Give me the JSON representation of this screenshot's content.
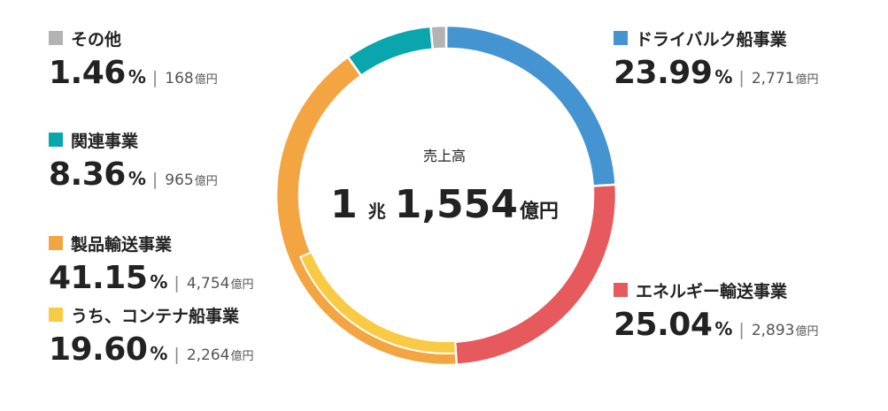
{
  "chart_data": {
    "type": "pie",
    "center": {
      "title": "売上高",
      "total_prefix": "1",
      "total_prefix_unit": "兆",
      "total_main": "1,554",
      "total_unit": "億円"
    },
    "slices": [
      {
        "name": "ドライバルク船事業",
        "percent": 23.99,
        "pct_label": "23.99",
        "amount": "2,771",
        "unit": "億円",
        "color": "#4394d0"
      },
      {
        "name": "エネルギー輸送事業",
        "percent": 25.04,
        "pct_label": "25.04",
        "amount": "2,893",
        "unit": "億円",
        "color": "#e65a5e"
      },
      {
        "name": "製品輸送事業",
        "percent": 41.15,
        "pct_label": "41.15",
        "amount": "4,754",
        "unit": "億円",
        "color": "#f3a541"
      },
      {
        "name": "関連事業",
        "percent": 8.36,
        "pct_label": "8.36",
        "amount": "965",
        "unit": "億円",
        "color": "#0aa6ad"
      },
      {
        "name": "その他",
        "percent": 1.46,
        "pct_label": "1.46",
        "amount": "168",
        "unit": "億円",
        "color": "#b3b3b3"
      }
    ],
    "sub_segment": {
      "name": "うち、コンテナ船事業",
      "parent": "製品輸送事業",
      "percent": 19.6,
      "pct_label": "19.60",
      "amount": "2,264",
      "unit": "億円",
      "color": "#f9cb44"
    },
    "percent_sign": "%",
    "separator": "|"
  }
}
